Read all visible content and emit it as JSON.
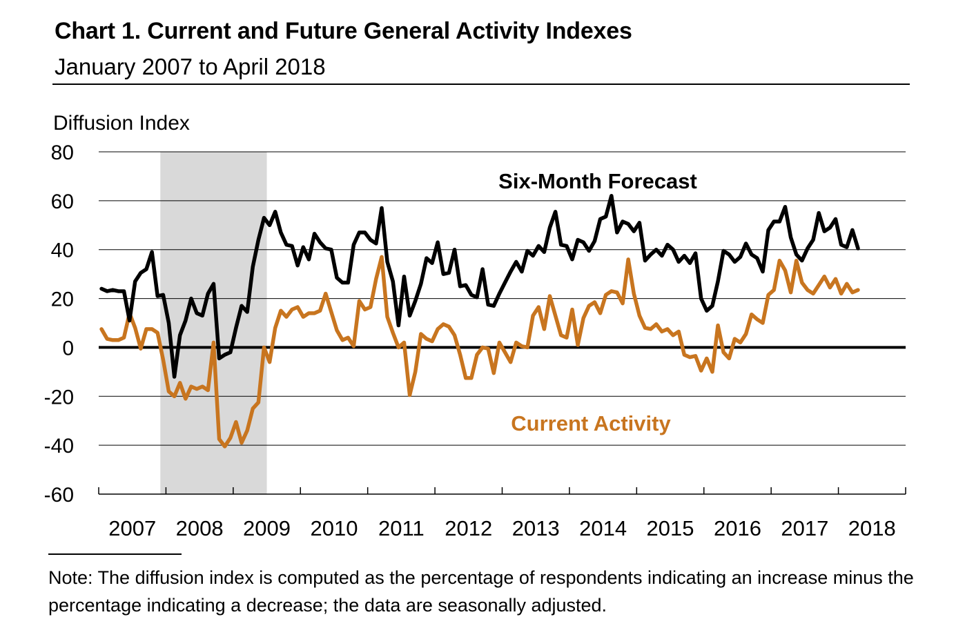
{
  "header": {
    "title": "Chart 1. Current and Future General Activity Indexes",
    "subtitle": "January 2007 to April 2018"
  },
  "note": "Note: The diffusion index is computed as the percentage of respondents indicating an increase minus the percentage indicating a decrease; the data are seasonally adjusted.",
  "colors": {
    "forecast": "#000000",
    "current": "#c8751f",
    "recession": "#d9d9d9",
    "grid": "#000000"
  },
  "chart_data": {
    "type": "line",
    "title": "Chart 1. Current and Future General Activity Indexes",
    "subtitle": "January 2007 to April 2018",
    "ylabel": "Diffusion Index",
    "xlabel": "",
    "ylim": [
      -60,
      80
    ],
    "yticks": [
      "80",
      "60",
      "40",
      "20",
      "0",
      "-20",
      "-40",
      "-60"
    ],
    "year_labels": [
      "2007",
      "2008",
      "2009",
      "2010",
      "2011",
      "2012",
      "2013",
      "2014",
      "2015",
      "2016",
      "2017",
      "2018"
    ],
    "grid": true,
    "recession": {
      "start": "2007-12",
      "end": "2009-06"
    },
    "x_start": "2007-01",
    "x_end": "2018-04",
    "series": [
      {
        "name": "Six-Month Forecast",
        "values": [
          24,
          23,
          23.5,
          23,
          23,
          11,
          27,
          30.5,
          32,
          39,
          21,
          21.5,
          10,
          -12,
          5,
          11,
          20,
          14,
          13,
          22,
          26,
          -4.5,
          -3,
          -2,
          8,
          17,
          14.5,
          33,
          44,
          53,
          50,
          55.5,
          47,
          42,
          41.5,
          33.5,
          41,
          36,
          46.5,
          43,
          40.5,
          40,
          28.5,
          26.5,
          26.5,
          42,
          47,
          47,
          44,
          42.5,
          57,
          35,
          27,
          9,
          29,
          13,
          19,
          26,
          36.5,
          34.5,
          43,
          30,
          30.5,
          40,
          25,
          25.5,
          21.5,
          20.5,
          32,
          17.5,
          17,
          22,
          26.5,
          31,
          35,
          31,
          39.5,
          37.5,
          41.5,
          39,
          49,
          55.5,
          42,
          41.5,
          36,
          44,
          43,
          39.5,
          43.5,
          52.5,
          53.5,
          62,
          47,
          51.5,
          50.5,
          47.5,
          51,
          35.5,
          38,
          40,
          37.5,
          42,
          40,
          35,
          37.5,
          34.5,
          38.5,
          20,
          15,
          17,
          27,
          39.5,
          38,
          35,
          37,
          42.5,
          38,
          36.5,
          31,
          48,
          51.5,
          51.5,
          57.5,
          45,
          38,
          35.5,
          40.5,
          44,
          55,
          47.5,
          49,
          52.5,
          42,
          41,
          48,
          40.5
        ]
      },
      {
        "name": "Current Activity",
        "values": [
          7.5,
          3.5,
          3,
          3,
          4,
          14,
          8,
          -0.5,
          7.5,
          7.5,
          6,
          -5,
          -18,
          -20,
          -14.5,
          -21,
          -16,
          -17,
          -16,
          -17.5,
          2,
          -37.5,
          -40.5,
          -37,
          -30.5,
          -39,
          -34,
          -25,
          -22.5,
          0,
          -6,
          8,
          15,
          12.5,
          15.5,
          16.5,
          12.5,
          14,
          14,
          15,
          22,
          14.5,
          7,
          3,
          4,
          0.5,
          19,
          15.5,
          16.5,
          28,
          37,
          12.5,
          6,
          0,
          2,
          -19.5,
          -10,
          5.5,
          3.5,
          2.5,
          7.5,
          9.5,
          8.5,
          5,
          -3,
          -12.5,
          -12.5,
          -3,
          0,
          -0.5,
          -10.5,
          2,
          -2,
          -6,
          2,
          0.5,
          0,
          13,
          16.5,
          7.5,
          21,
          13,
          5,
          4,
          15.5,
          1,
          12,
          17,
          18.5,
          14,
          21.5,
          23,
          22.5,
          18,
          36,
          22,
          13,
          8,
          7.5,
          9.5,
          6.5,
          7.5,
          5,
          6.5,
          -3,
          -4,
          -3.5,
          -9.5,
          -4.5,
          -10,
          9,
          -2,
          -4.5,
          3.5,
          2,
          5.5,
          13.5,
          11.5,
          10,
          21.5,
          23.5,
          35.5,
          31.5,
          22.5,
          35.5,
          26.5,
          23.5,
          22,
          25.5,
          29,
          24.5,
          28,
          22,
          26,
          22.5,
          23.5
        ]
      }
    ],
    "annotations": [
      {
        "series": "Six-Month Forecast",
        "text": "Six-Month Forecast"
      },
      {
        "series": "Current Activity",
        "text": "Current Activity"
      }
    ]
  }
}
